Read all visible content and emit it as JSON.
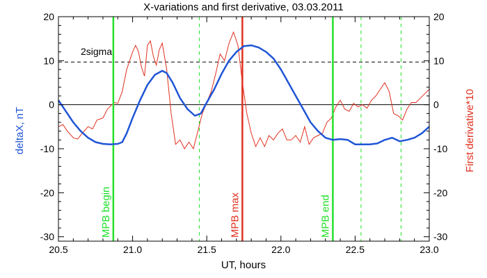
{
  "chart_data": {
    "type": "line",
    "title": "X-variations and first derivative, 03.03.2011",
    "xlabel": "UT, hours",
    "ylabel_left": "deltaX, nT",
    "ylabel_right": "First derivative*10",
    "xlim": [
      20.5,
      23.0
    ],
    "ylim": [
      -31,
      20
    ],
    "x_ticks": [
      "20.5",
      "21.0",
      "21.5",
      "22.0",
      "22.5",
      "23.0"
    ],
    "x_tick_values": [
      20.5,
      21.0,
      21.5,
      22.0,
      22.5,
      23.0
    ],
    "y_ticks": [
      "20",
      "10",
      "0",
      "-10",
      "-20",
      "-30"
    ],
    "y_tick_values": [
      20,
      10,
      0,
      -10,
      -20,
      -30
    ],
    "threshold": {
      "label": "2sigma",
      "value": 9.7
    },
    "zero_line": 0,
    "colors": {
      "deltaX": "#1f55d6",
      "derivative": "#e0301e",
      "mpb": "#22e02a",
      "max": "#e0301e"
    },
    "series": [
      {
        "key": "deltaX",
        "x": [
          20.5,
          20.55,
          20.6,
          20.65,
          20.7,
          20.75,
          20.8,
          20.85,
          20.9,
          20.93,
          20.96,
          21.0,
          21.05,
          21.1,
          21.15,
          21.2,
          21.23,
          21.27,
          21.32,
          21.37,
          21.42,
          21.46,
          21.5,
          21.55,
          21.6,
          21.65,
          21.7,
          21.75,
          21.8,
          21.85,
          21.9,
          21.95,
          22.0,
          22.05,
          22.1,
          22.15,
          22.2,
          22.25,
          22.3,
          22.35,
          22.4,
          22.45,
          22.5,
          22.55,
          22.6,
          22.65,
          22.7,
          22.75,
          22.8,
          22.85,
          22.9,
          22.95,
          23.0
        ],
        "y": [
          1.0,
          -1.5,
          -4.0,
          -6.0,
          -7.5,
          -8.5,
          -8.9,
          -9.0,
          -8.9,
          -8.5,
          -6.5,
          -3.0,
          1.0,
          4.5,
          6.8,
          7.7,
          7.2,
          5.0,
          1.5,
          -1.0,
          -2.5,
          -2.0,
          0.5,
          3.5,
          7.0,
          10.0,
          12.0,
          13.3,
          13.5,
          13.0,
          12.0,
          10.5,
          8.0,
          5.0,
          2.0,
          -1.0,
          -4.0,
          -6.0,
          -7.5,
          -8.0,
          -7.8,
          -8.0,
          -9.0,
          -9.0,
          -9.0,
          -8.8,
          -8.0,
          -7.5,
          -8.3,
          -8.0,
          -7.5,
          -6.5,
          -5.0
        ]
      },
      {
        "key": "derivative",
        "x": [
          20.5,
          20.53,
          20.56,
          20.6,
          20.63,
          20.66,
          20.7,
          20.73,
          20.76,
          20.8,
          20.83,
          20.86,
          20.88,
          20.9,
          20.93,
          20.96,
          21.0,
          21.02,
          21.04,
          21.06,
          21.08,
          21.1,
          21.12,
          21.14,
          21.16,
          21.18,
          21.2,
          21.23,
          21.26,
          21.29,
          21.32,
          21.35,
          21.38,
          21.41,
          21.44,
          21.47,
          21.5,
          21.53,
          21.56,
          21.59,
          21.62,
          21.65,
          21.68,
          21.71,
          21.74,
          21.77,
          21.8,
          21.83,
          21.86,
          21.89,
          21.92,
          21.95,
          21.98,
          22.01,
          22.04,
          22.07,
          22.1,
          22.13,
          22.16,
          22.19,
          22.22,
          22.25,
          22.28,
          22.31,
          22.34,
          22.37,
          22.4,
          22.43,
          22.46,
          22.49,
          22.52,
          22.55,
          22.58,
          22.61,
          22.64,
          22.67,
          22.7,
          22.73,
          22.76,
          22.79,
          22.82,
          22.85,
          22.88,
          22.91,
          22.94,
          22.97,
          23.0
        ],
        "y": [
          -5.0,
          -4.5,
          -6.0,
          -7.5,
          -7.8,
          -6.5,
          -5.0,
          -5.5,
          -3.5,
          -3.0,
          -1.0,
          0.0,
          0.5,
          0.3,
          3.0,
          8.0,
          12.0,
          13.5,
          12.0,
          8.5,
          6.5,
          13.5,
          14.5,
          11.0,
          9.0,
          12.5,
          14.0,
          8.0,
          -2.0,
          -9.0,
          -8.0,
          -10.0,
          -8.5,
          -10.0,
          -6.0,
          -2.0,
          0.5,
          3.0,
          7.0,
          11.5,
          10.0,
          14.0,
          16.5,
          13.5,
          5.0,
          -2.0,
          -6.5,
          -9.5,
          -7.5,
          -9.5,
          -7.0,
          -8.0,
          -6.5,
          -5.5,
          -8.0,
          -8.0,
          -7.0,
          -8.5,
          -5.0,
          -9.0,
          -7.5,
          -7.0,
          -6.5,
          -4.0,
          -3.0,
          -0.5,
          1.0,
          -1.0,
          -1.5,
          0.3,
          -0.5,
          0.0,
          -0.8,
          1.0,
          2.0,
          3.5,
          5.0,
          3.0,
          -2.0,
          -2.5,
          -3.5,
          -1.0,
          0.5,
          0.5,
          1.5,
          2.5,
          3.5
        ]
      }
    ],
    "markers": [
      {
        "label": "MPB begin",
        "x": 20.87,
        "style": "solid",
        "color": "mpb"
      },
      {
        "label": "MPB max",
        "x": 21.74,
        "style": "solid",
        "color": "max"
      },
      {
        "label": "MPB end",
        "x": 22.35,
        "style": "solid",
        "color": "mpb"
      },
      {
        "label": "",
        "x": 21.45,
        "style": "dashed",
        "color": "mpb"
      },
      {
        "label": "",
        "x": 22.54,
        "style": "dashed",
        "color": "mpb"
      },
      {
        "label": "",
        "x": 22.81,
        "style": "dashed",
        "color": "mpb"
      }
    ]
  }
}
